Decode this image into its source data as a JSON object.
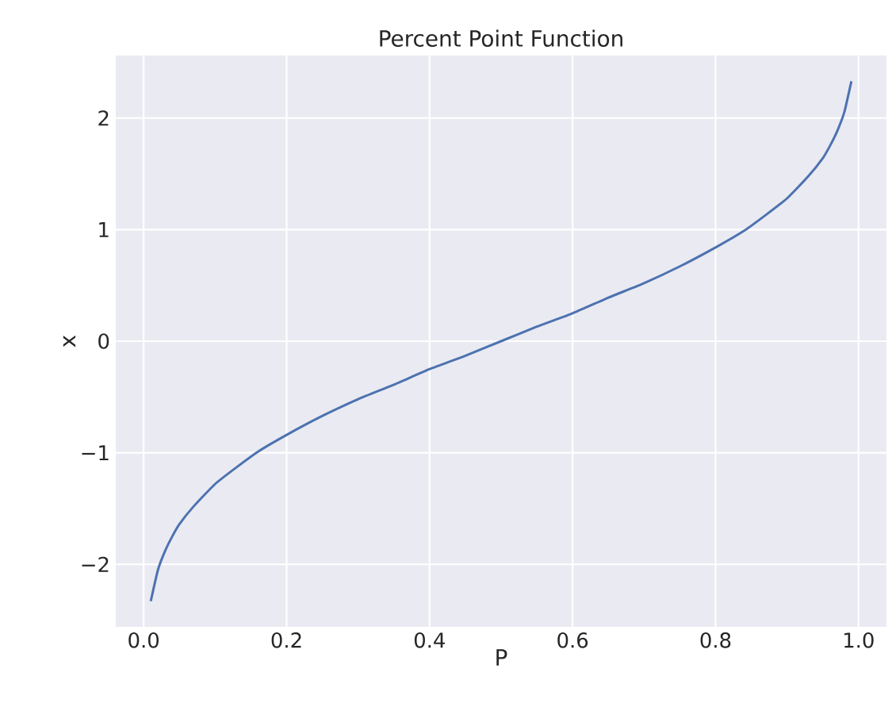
{
  "chart_data": {
    "type": "line",
    "title": "Percent Point Function",
    "xlabel": "P",
    "ylabel": "x",
    "x": [
      0.01,
      0.02,
      0.03,
      0.04,
      0.05,
      0.07,
      0.1,
      0.13,
      0.16,
      0.2,
      0.25,
      0.3,
      0.35,
      0.4,
      0.45,
      0.5,
      0.55,
      0.6,
      0.65,
      0.7,
      0.75,
      0.8,
      0.84,
      0.87,
      0.9,
      0.93,
      0.95,
      0.96,
      0.97,
      0.98,
      0.99
    ],
    "series": [
      {
        "color": "#4c72b0",
        "values": [
          -2.33,
          -2.05,
          -1.88,
          -1.75,
          -1.64,
          -1.48,
          -1.28,
          -1.13,
          -0.99,
          -0.84,
          -0.67,
          -0.52,
          -0.39,
          -0.25,
          -0.13,
          0.0,
          0.13,
          0.25,
          0.39,
          0.52,
          0.67,
          0.84,
          0.99,
          1.13,
          1.28,
          1.48,
          1.64,
          1.75,
          1.88,
          2.05,
          2.33
        ]
      }
    ],
    "xlim": [
      -0.039,
      1.039
    ],
    "ylim": [
      -2.56,
      2.56
    ],
    "xticks": [
      {
        "value": 0,
        "label": "0.0"
      },
      0.2,
      0.4,
      0.6,
      0.8,
      {
        "value": 1,
        "label": "1.0"
      }
    ],
    "yticks": [
      {
        "value": -2,
        "label": "−2"
      },
      {
        "value": -1,
        "label": "−1"
      },
      0,
      1,
      2
    ],
    "grid": true,
    "marker": "none",
    "line_style": "solid"
  }
}
